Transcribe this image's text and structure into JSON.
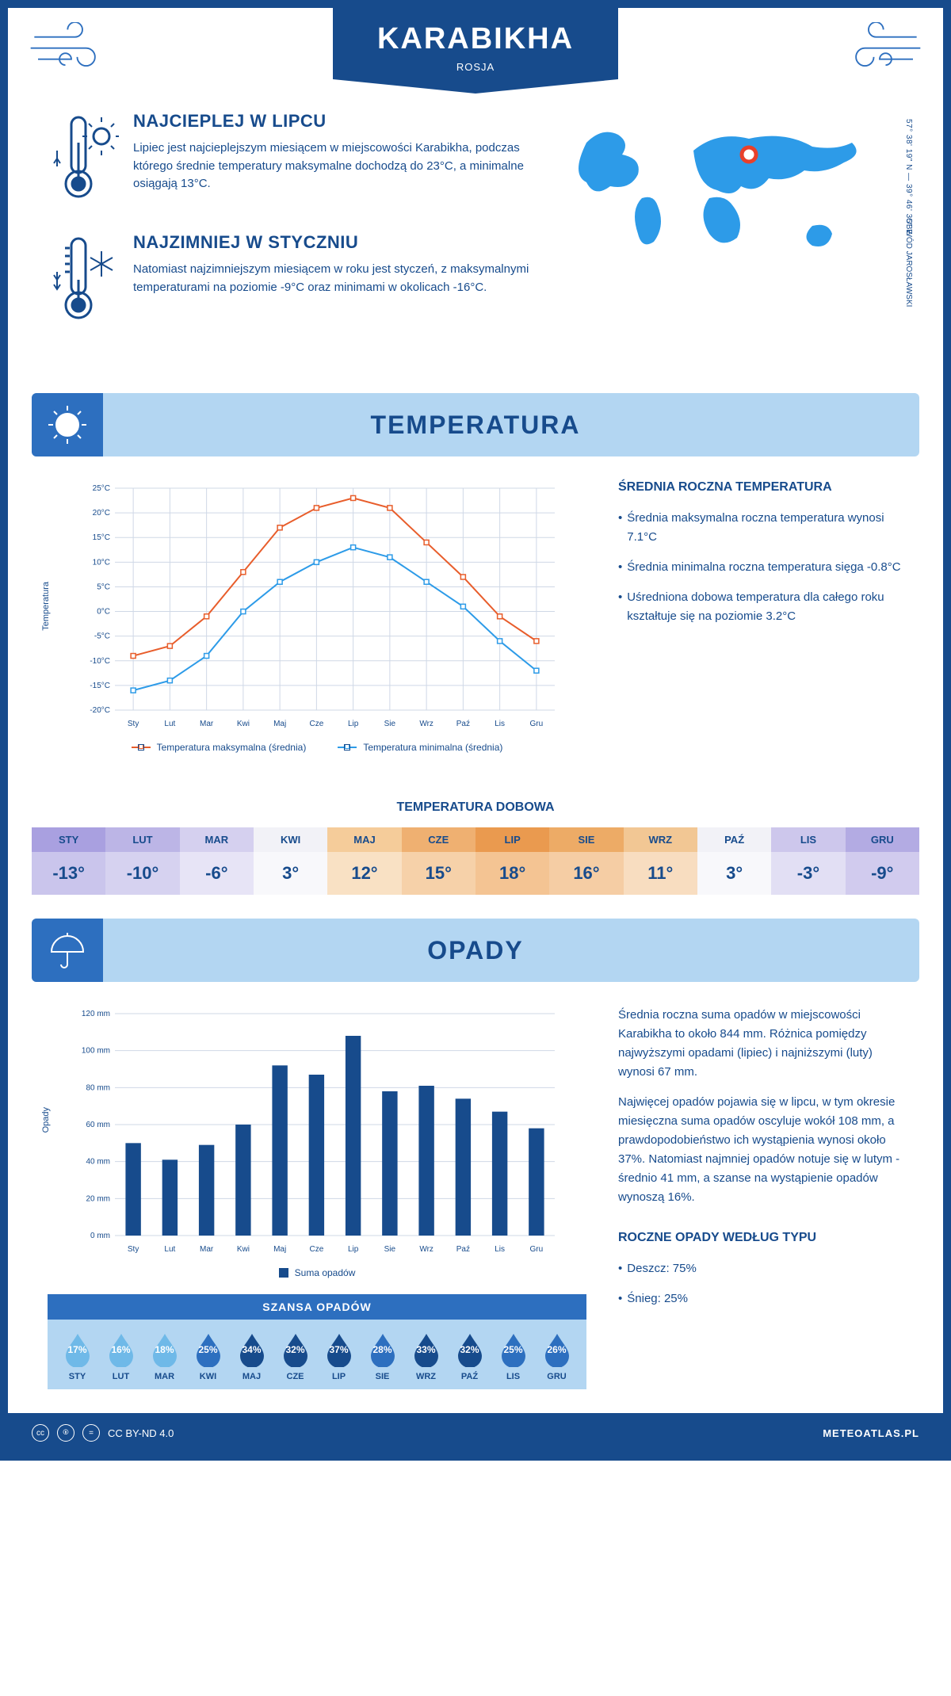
{
  "header": {
    "city": "KARABIKHA",
    "country": "ROSJA",
    "coords": "57° 38' 19\" N — 39° 46' 35\" E",
    "region": "OBWÓD JAROSŁAWSKI"
  },
  "facts": {
    "hot": {
      "title": "NAJCIEPLEJ W LIPCU",
      "text": "Lipiec jest najcieplejszym miesiącem w miejscowości Karabikha, podczas którego średnie temperatury maksymalne dochodzą do 23°C, a minimalne osiągają 13°C."
    },
    "cold": {
      "title": "NAJZIMNIEJ W STYCZNIU",
      "text": "Natomiast najzimniejszym miesiącem w roku jest styczeń, z maksymalnymi temperaturami na poziomie -9°C oraz minimami w okolicach -16°C."
    }
  },
  "sections": {
    "temp_title": "TEMPERATURA",
    "precip_title": "OPADY"
  },
  "months": [
    "Sty",
    "Lut",
    "Mar",
    "Kwi",
    "Maj",
    "Cze",
    "Lip",
    "Sie",
    "Wrz",
    "Paź",
    "Lis",
    "Gru"
  ],
  "months_upper": [
    "STY",
    "LUT",
    "MAR",
    "KWI",
    "MAJ",
    "CZE",
    "LIP",
    "SIE",
    "WRZ",
    "PAŹ",
    "LIS",
    "GRU"
  ],
  "temp_chart": {
    "type": "line",
    "y_label": "Temperatura",
    "y_min": -20,
    "y_max": 25,
    "y_step": 5,
    "y_labels": [
      "-20°C",
      "-15°C",
      "-10°C",
      "-5°C",
      "0°C",
      "5°C",
      "10°C",
      "15°C",
      "20°C",
      "25°C"
    ],
    "series": [
      {
        "name": "Temperatura maksymalna (średnia)",
        "color": "#e85d2b",
        "values": [
          -9,
          -7,
          -1,
          8,
          17,
          21,
          23,
          21,
          14,
          7,
          -1,
          -6
        ]
      },
      {
        "name": "Temperatura minimalna (średnia)",
        "color": "#2d9be8",
        "values": [
          -16,
          -14,
          -9,
          0,
          6,
          10,
          13,
          11,
          6,
          1,
          -6,
          -12
        ]
      }
    ],
    "grid_color": "#cfd8e6",
    "background": "#ffffff",
    "marker": "square"
  },
  "temp_summary": {
    "title": "ŚREDNIA ROCZNA TEMPERATURA",
    "items": [
      "Średnia maksymalna roczna temperatura wynosi 7.1°C",
      "Średnia minimalna roczna temperatura sięga -0.8°C",
      "Uśredniona dobowa temperatura dla całego roku kształtuje się na poziomie 3.2°C"
    ]
  },
  "daily_temp": {
    "title": "TEMPERATURA DOBOWA",
    "values": [
      "-13°",
      "-10°",
      "-6°",
      "3°",
      "12°",
      "15°",
      "18°",
      "16°",
      "11°",
      "3°",
      "-3°",
      "-9°"
    ],
    "header_colors": [
      "#a9a0e0",
      "#bcb5e6",
      "#d5d0ef",
      "#f2f2f7",
      "#f5cc9a",
      "#efb071",
      "#ea9a4f",
      "#edab66",
      "#f2c794",
      "#f2f2f7",
      "#cdc7ec",
      "#b3abe3"
    ],
    "value_colors": [
      "#cac5ec",
      "#d6d2f0",
      "#e7e4f6",
      "#f8f8fb",
      "#f9e1c4",
      "#f6d1a9",
      "#f4c493",
      "#f5cda4",
      "#f8ddc0",
      "#f8f8fb",
      "#e2dff4",
      "#d1cbee"
    ]
  },
  "precip_chart": {
    "type": "bar",
    "y_label": "Opady",
    "y_min": 0,
    "y_max": 120,
    "y_step": 20,
    "y_labels": [
      "0 mm",
      "20 mm",
      "40 mm",
      "60 mm",
      "80 mm",
      "100 mm",
      "120 mm"
    ],
    "values": [
      50,
      41,
      49,
      60,
      92,
      87,
      108,
      78,
      81,
      74,
      67,
      58
    ],
    "bar_color": "#174b8c",
    "legend": "Suma opadów",
    "grid_color": "#cfd8e6"
  },
  "precip_text": {
    "p1": "Średnia roczna suma opadów w miejscowości Karabikha to około 844 mm. Różnica pomiędzy najwyższymi opadami (lipiec) i najniższymi (luty) wynosi 67 mm.",
    "p2": "Najwięcej opadów pojawia się w lipcu, w tym okresie miesięczna suma opadów oscyluje wokół 108 mm, a prawdopodobieństwo ich wystąpienia wynosi około 37%. Natomiast najmniej opadów notuje się w lutym - średnio 41 mm, a szanse na wystąpienie opadów wynoszą 16%."
  },
  "precip_chance": {
    "title": "SZANSA OPADÓW",
    "values": [
      "17%",
      "16%",
      "18%",
      "25%",
      "34%",
      "32%",
      "37%",
      "28%",
      "33%",
      "32%",
      "25%",
      "26%"
    ],
    "colors": [
      "#6fb9e8",
      "#6fb9e8",
      "#6fb9e8",
      "#2d6fbf",
      "#174b8c",
      "#174b8c",
      "#174b8c",
      "#2d6fbf",
      "#174b8c",
      "#174b8c",
      "#2d6fbf",
      "#2d6fbf"
    ]
  },
  "precip_type": {
    "title": "ROCZNE OPADY WEDŁUG TYPU",
    "items": [
      "Deszcz: 75%",
      "Śnieg: 25%"
    ]
  },
  "footer": {
    "license": "CC BY-ND 4.0",
    "site": "METEOATLAS.PL"
  },
  "colors": {
    "primary": "#174b8c",
    "accent": "#2d6fbf",
    "light": "#b3d6f2"
  }
}
